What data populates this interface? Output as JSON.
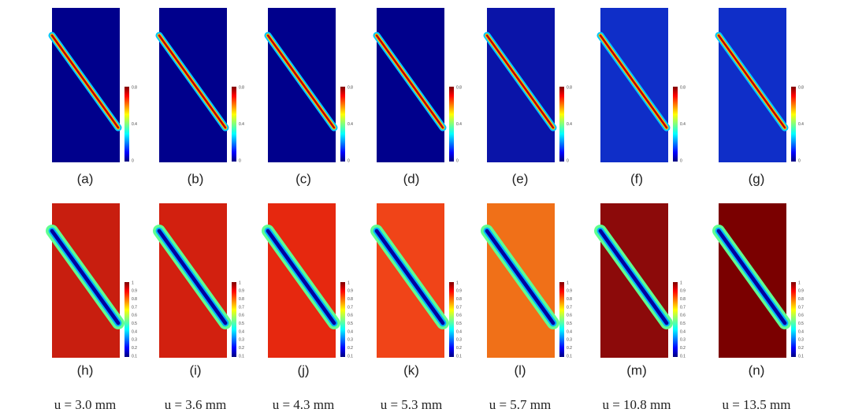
{
  "top_row": {
    "labels": [
      "(a)",
      "(b)",
      "(c)",
      "(d)",
      "(e)",
      "(f)",
      "(g)"
    ],
    "colorbar_ticks": [
      0,
      0.4,
      0.8
    ]
  },
  "bottom_row": {
    "labels": [
      "(h)",
      "(i)",
      "(j)",
      "(k)",
      "(l)",
      "(m)",
      "(n)"
    ],
    "colorbar_ticks": [
      0.1,
      0.2,
      0.3,
      0.4,
      0.5,
      0.6,
      0.7,
      0.8,
      0.9,
      1
    ]
  },
  "displacements": [
    "u = 3.0 mm",
    "u = 3.6 mm",
    "u = 4.3 mm",
    "u = 5.3 mm",
    "u = 5.7 mm",
    "u = 10.8 mm",
    "u = 13.5 mm"
  ]
}
